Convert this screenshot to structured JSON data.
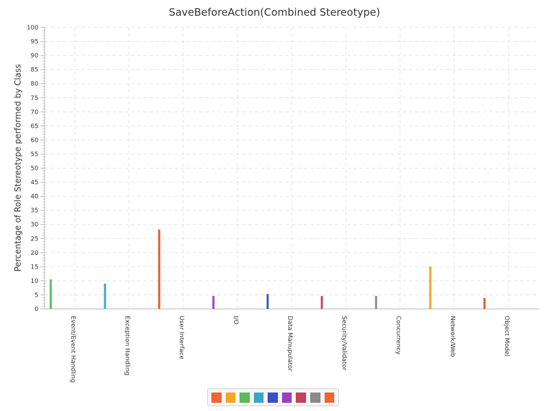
{
  "chart_data": {
    "type": "bar",
    "title": "SaveBeforeAction(Combined Stereotype)",
    "xlabel": "",
    "ylabel": "Percentage of Role Stereotype performed by Class",
    "ylim": [
      0,
      100
    ],
    "yticks": [
      0,
      5,
      10,
      15,
      20,
      25,
      30,
      35,
      40,
      45,
      50,
      55,
      60,
      65,
      70,
      75,
      80,
      85,
      90,
      95,
      100
    ],
    "grid": true,
    "legend_position": "bottom",
    "categories": [
      "Event/Event Handling",
      "Exception Handling",
      "User Interface",
      "I/O",
      "Data Manupulator",
      "Security/Validator",
      "Concurrency",
      "Network/Web",
      "Object Model"
    ],
    "values": [
      10.5,
      9,
      28.2,
      4.6,
      5.3,
      4.6,
      4.6,
      15.1,
      3.9
    ],
    "colors": [
      "#5cb85c",
      "#3ba7c0",
      "#e8572b",
      "#9a41c2",
      "#3b4fc4",
      "#c4405e",
      "#8a8a8a",
      "#f0a02b",
      "#e8572b"
    ],
    "legend_colors": [
      "#f26430",
      "#f5a623",
      "#5cb85c",
      "#3ba7c0",
      "#3b4fc4",
      "#9a41c2",
      "#c4405e",
      "#8a8a8a",
      "#f26430"
    ]
  }
}
